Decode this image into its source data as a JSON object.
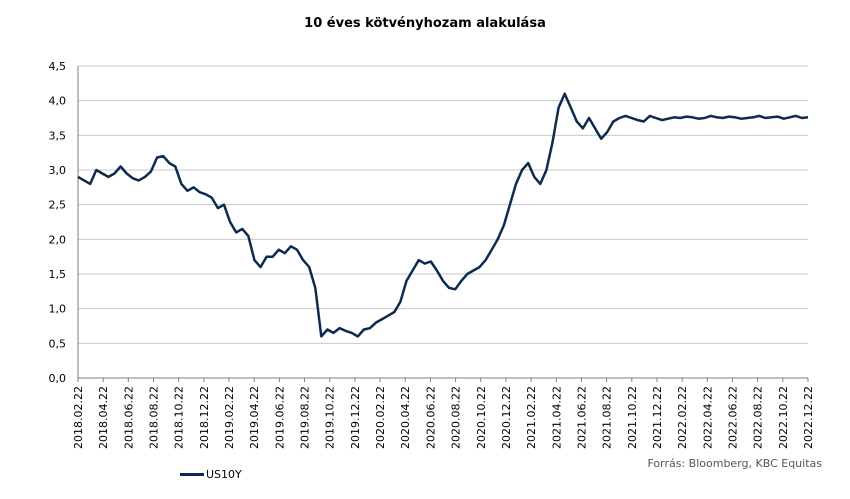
{
  "chart_data": {
    "type": "line",
    "title": "10 éves kötvényhozam alakulása",
    "xlabel": "",
    "ylabel": "",
    "ylim": [
      0,
      4.5
    ],
    "yticks": [
      "0,0",
      "0,5",
      "1,0",
      "1,5",
      "2,0",
      "2,5",
      "3,0",
      "3,5",
      "4,0",
      "4,5"
    ],
    "ytick_values": [
      0,
      0.5,
      1.0,
      1.5,
      2.0,
      2.5,
      3.0,
      3.5,
      4.0,
      4.5
    ],
    "xticks": [
      "2018.02.22",
      "2018.04.22",
      "2018.06.22",
      "2018.08.22",
      "2018.10.22",
      "2018.12.22",
      "2019.02.22",
      "2019.04.22",
      "2019.06.22",
      "2019.08.22",
      "2019.10.22",
      "2019.12.22",
      "2020.02.22",
      "2020.04.22",
      "2020.06.22",
      "2020.08.22",
      "2020.10.22",
      "2020.12.22",
      "2021.02.22",
      "2021.04.22",
      "2021.06.22",
      "2021.08.22",
      "2021.10.22",
      "2021.12.22",
      "2022.02.22",
      "2022.04.22",
      "2022.06.22",
      "2022.08.22",
      "2022.10.22",
      "2022.12.22"
    ],
    "grid": true,
    "legend": "bottom-left",
    "series": [
      {
        "name": "US10Y",
        "color": "#0d2a4f",
        "x": [
          0,
          0.5,
          1,
          1.5,
          2,
          2.5,
          3,
          3.5,
          4,
          4.5,
          5,
          5.5,
          6,
          6.5,
          7,
          7.5,
          8,
          8.5,
          9,
          9.5,
          10,
          10.5,
          11,
          11.5,
          12,
          12.5,
          13,
          13.5,
          14,
          14.5,
          15,
          15.5,
          16,
          16.5,
          17,
          17.5,
          18,
          18.5,
          19,
          19.5,
          20,
          20.5,
          21,
          21.5,
          22,
          22.5,
          23,
          23.5,
          24,
          24.5,
          25,
          25.5,
          26,
          26.5,
          27,
          27.5,
          28,
          28.5,
          29,
          29.5,
          30,
          30.5,
          31,
          31.5,
          32,
          32.5,
          33,
          33.5,
          34,
          34.5,
          35,
          35.5,
          36,
          36.5,
          37,
          37.5,
          38,
          38.5,
          39,
          39.5,
          40,
          40.5,
          41,
          41.5,
          42,
          42.5,
          43,
          43.5,
          44,
          44.5,
          45,
          45.5,
          46,
          46.5,
          47,
          47.5,
          48,
          48.5,
          49,
          49.5,
          50,
          50.5,
          51,
          51.5,
          52,
          52.5,
          53,
          53.5,
          54,
          54.5,
          55,
          55.5,
          56,
          56.5,
          57,
          57.5,
          58,
          58.5,
          59,
          59.5,
          60
        ],
        "values": [
          2.9,
          2.85,
          2.8,
          3.0,
          2.95,
          2.9,
          2.95,
          3.05,
          2.95,
          2.88,
          2.85,
          2.9,
          2.98,
          3.18,
          3.2,
          3.1,
          3.05,
          2.8,
          2.7,
          2.75,
          2.68,
          2.65,
          2.6,
          2.45,
          2.5,
          2.25,
          2.1,
          2.15,
          2.05,
          1.7,
          1.6,
          1.75,
          1.75,
          1.85,
          1.8,
          1.9,
          1.85,
          1.7,
          1.6,
          1.3,
          0.6,
          0.7,
          0.65,
          0.72,
          0.68,
          0.65,
          0.6,
          0.7,
          0.72,
          0.8,
          0.85,
          0.9,
          0.95,
          1.1,
          1.4,
          1.55,
          1.7,
          1.65,
          1.68,
          1.55,
          1.4,
          1.3,
          1.28,
          1.4,
          1.5,
          1.55,
          1.6,
          1.7,
          1.85,
          2.0,
          2.2,
          2.5,
          2.8,
          3.0,
          3.1,
          2.9,
          2.8,
          3.0,
          3.4,
          3.9,
          4.1,
          3.9,
          3.7,
          3.6,
          3.75,
          3.6,
          3.45,
          3.55,
          3.7,
          3.75,
          3.78,
          3.75,
          3.72,
          3.7,
          3.78,
          3.75,
          3.72,
          3.74,
          3.76,
          3.75,
          3.77,
          3.76,
          3.74,
          3.75,
          3.78,
          3.76,
          3.75,
          3.77,
          3.76,
          3.74,
          3.75,
          3.76,
          3.78,
          3.75,
          3.76,
          3.77,
          3.74,
          3.76,
          3.78,
          3.75,
          3.76
        ]
      }
    ]
  },
  "source_note": "Forrás: Bloomberg, KBC Equitas"
}
